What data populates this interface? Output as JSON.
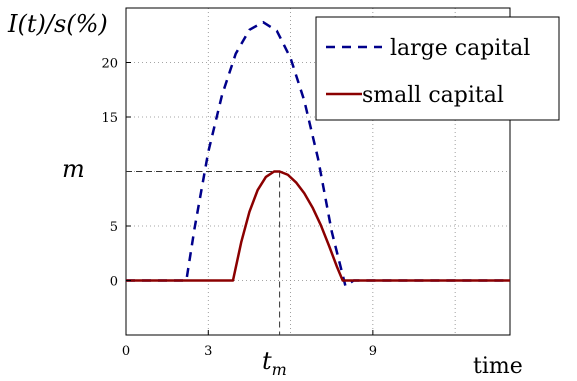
{
  "chart_data": {
    "type": "line",
    "title": "",
    "ylabel": "I(t)/s(%)",
    "xlabel": "time",
    "xlim": [
      0,
      14
    ],
    "ylim": [
      -5,
      25
    ],
    "grid": true,
    "legend_position": "top-right",
    "x_ticks": [
      {
        "value": 0,
        "label": "0"
      },
      {
        "value": 3,
        "label": "3"
      },
      {
        "value": 9,
        "label": "9"
      }
    ],
    "y_ticks": [
      {
        "value": 0,
        "label": "0"
      },
      {
        "value": 5,
        "label": "5"
      },
      {
        "value": 15,
        "label": "15"
      },
      {
        "value": 20,
        "label": "20"
      }
    ],
    "annotations": {
      "m_label": "m",
      "m_value": 10,
      "tm_label": "t_m",
      "tm_value": 5.6
    },
    "series": [
      {
        "name": "large capital",
        "style": "dashed",
        "color": "#00008b",
        "x": [
          0,
          2.2,
          2.5,
          3.0,
          3.5,
          4.0,
          4.5,
          5.0,
          5.5,
          6.0,
          6.5,
          7.0,
          7.5,
          8.0,
          8.3,
          14.0
        ],
        "y": [
          0,
          0,
          4.8,
          11.8,
          17.0,
          20.8,
          23.0,
          23.7,
          22.9,
          20.4,
          16.5,
          11.2,
          4.5,
          -0.5,
          0,
          0
        ]
      },
      {
        "name": "small capital",
        "style": "solid",
        "color": "#8b0000",
        "x": [
          0,
          3.9,
          4.2,
          4.5,
          4.8,
          5.1,
          5.4,
          5.6,
          5.9,
          6.2,
          6.5,
          6.8,
          7.1,
          7.4,
          7.7,
          7.9,
          14.0
        ],
        "y": [
          0,
          0,
          3.5,
          6.3,
          8.3,
          9.5,
          10.0,
          10.0,
          9.7,
          9.0,
          8.0,
          6.7,
          5.1,
          3.2,
          1.2,
          0,
          0
        ]
      }
    ]
  }
}
